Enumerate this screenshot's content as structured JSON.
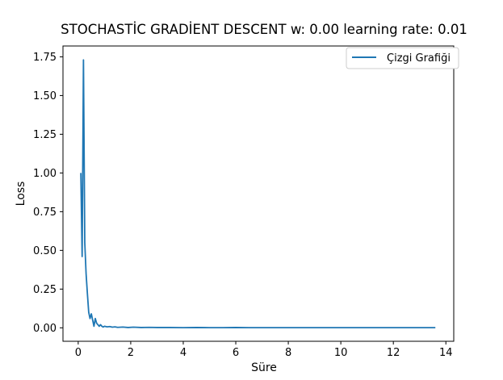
{
  "chart_data": {
    "type": "line",
    "title": "STOCHASTİC GRADİENT DESCENT w: 0.00 learning rate: 0.01",
    "xlabel": "Süre",
    "ylabel": "Loss",
    "xlim": [
      -0.58,
      14.3
    ],
    "ylim": [
      -0.087,
      1.82
    ],
    "xticks": [
      0,
      2,
      4,
      6,
      8,
      10,
      12,
      14
    ],
    "yticks": [
      0.0,
      0.25,
      0.5,
      0.75,
      1.0,
      1.25,
      1.5,
      1.75
    ],
    "xtick_labels": [
      "0",
      "2",
      "4",
      "6",
      "8",
      "10",
      "12",
      "14"
    ],
    "ytick_labels": [
      "0.00",
      "0.25",
      "0.50",
      "0.75",
      "1.00",
      "1.25",
      "1.50",
      "1.75"
    ],
    "grid": false,
    "legend_position": "top-right",
    "series": [
      {
        "name": "Çizgi Grafiği",
        "color": "#1f77b4",
        "x": [
          0.1,
          0.15,
          0.2,
          0.25,
          0.3,
          0.35,
          0.4,
          0.45,
          0.5,
          0.55,
          0.6,
          0.65,
          0.7,
          0.75,
          0.8,
          0.85,
          0.9,
          0.95,
          1.0,
          1.1,
          1.2,
          1.3,
          1.4,
          1.5,
          1.7,
          1.9,
          2.1,
          2.4,
          2.7,
          3.0,
          3.5,
          4.0,
          4.5,
          5.0,
          5.5,
          6.0,
          6.5,
          7.0,
          7.5,
          8.0,
          8.5,
          9.0,
          9.5,
          10.0,
          10.5,
          11.0,
          11.5,
          12.0,
          12.5,
          13.0,
          13.6
        ],
        "y": [
          1.0,
          0.46,
          1.73,
          0.55,
          0.35,
          0.22,
          0.1,
          0.06,
          0.09,
          0.05,
          0.01,
          0.06,
          0.03,
          0.02,
          0.01,
          0.02,
          0.01,
          0.005,
          0.01,
          0.006,
          0.008,
          0.004,
          0.006,
          0.003,
          0.005,
          0.002,
          0.004,
          0.002,
          0.003,
          0.002,
          0.002,
          0.001,
          0.002,
          0.001,
          0.001,
          0.002,
          0.001,
          0.001,
          0.001,
          0.001,
          0.001,
          0.001,
          0.001,
          0.001,
          0.001,
          0.001,
          0.001,
          0.001,
          0.001,
          0.001,
          0.001
        ]
      }
    ]
  }
}
